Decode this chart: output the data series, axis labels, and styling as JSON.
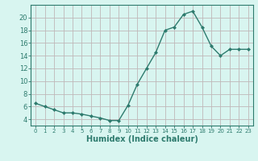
{
  "x": [
    0,
    1,
    2,
    3,
    4,
    5,
    6,
    7,
    8,
    9,
    10,
    11,
    12,
    13,
    14,
    15,
    16,
    17,
    18,
    19,
    20,
    21,
    22,
    23
  ],
  "y": [
    6.5,
    6.0,
    5.5,
    5.0,
    5.0,
    4.8,
    4.5,
    4.2,
    3.8,
    3.8,
    6.2,
    9.5,
    12.0,
    14.5,
    18.0,
    18.5,
    20.5,
    21.0,
    18.5,
    15.5,
    14.0,
    15.0,
    15.0,
    15.0
  ],
  "line_color": "#2e7b6e",
  "marker": "D",
  "marker_size": 2,
  "bg_color": "#d8f5f0",
  "grid_color": "#c0b8b8",
  "axis_color": "#2e7b6e",
  "tick_color": "#2e7b6e",
  "xlabel": "Humidex (Indice chaleur)",
  "ylabel": "",
  "xlim": [
    -0.5,
    23.5
  ],
  "ylim": [
    3,
    22
  ],
  "yticks": [
    4,
    6,
    8,
    10,
    12,
    14,
    16,
    18,
    20
  ],
  "xticks": [
    0,
    1,
    2,
    3,
    4,
    5,
    6,
    7,
    8,
    9,
    10,
    11,
    12,
    13,
    14,
    15,
    16,
    17,
    18,
    19,
    20,
    21,
    22,
    23
  ],
  "font_size": 6,
  "label_fontsize": 7,
  "linewidth": 1.0
}
